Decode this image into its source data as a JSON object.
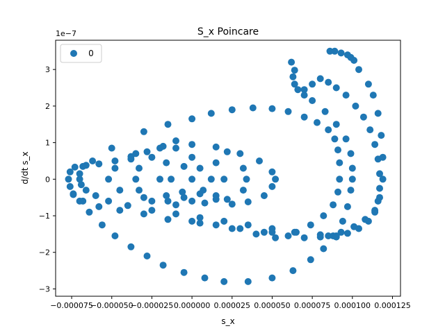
{
  "chart_data": {
    "type": "scatter",
    "title": "S_x Poincare",
    "xlabel": "s_x",
    "ylabel": "d/dt s_x",
    "y_offset_label": "1e−7",
    "xlim": [
      -8.5e-05,
      0.00013
    ],
    "ylim": [
      -3.2,
      3.8
    ],
    "y_scale_exponent": -7,
    "grid": false,
    "legend": {
      "placement": "top-left",
      "entries": [
        "0"
      ]
    },
    "x_ticks": [
      {
        "value": -7.5e-05,
        "label": "−0.000075"
      },
      {
        "value": -5e-05,
        "label": "−0.000050"
      },
      {
        "value": -2.5e-05,
        "label": "−0.000025"
      },
      {
        "value": 0.0,
        "label": "0.000000"
      },
      {
        "value": 2.5e-05,
        "label": "0.000025"
      },
      {
        "value": 5e-05,
        "label": "0.000050"
      },
      {
        "value": 7.5e-05,
        "label": "0.000075"
      },
      {
        "value": 0.0001,
        "label": "0.000100"
      },
      {
        "value": 0.000125,
        "label": "0.000125"
      }
    ],
    "y_ticks": [
      {
        "value": -3,
        "label": "−3"
      },
      {
        "value": -2,
        "label": "−2"
      },
      {
        "value": -1,
        "label": "−1"
      },
      {
        "value": 0,
        "label": "0"
      },
      {
        "value": 1,
        "label": "1"
      },
      {
        "value": 2,
        "label": "2"
      },
      {
        "value": 3,
        "label": "3"
      }
    ],
    "series": [
      {
        "name": "0",
        "color": "#1f77b4",
        "marker": "circle",
        "points": [
          [
            0.0,
            0.0
          ],
          [
            5e-06,
            0.3
          ],
          [
            7e-06,
            -0.3
          ],
          [
            -5e-06,
            0.35
          ],
          [
            -6e-06,
            -0.35
          ],
          [
            1.2e-05,
            0.0
          ],
          [
            -1.3e-05,
            0.0
          ],
          [
            0.0,
            0.6
          ],
          [
            1.5e-05,
            0.45
          ],
          [
            2e-05,
            0.0
          ],
          [
            1.5e-05,
            -0.45
          ],
          [
            0.0,
            -0.6
          ],
          [
            -1.6e-05,
            -0.45
          ],
          [
            -2e-05,
            0.0
          ],
          [
            -1.6e-05,
            0.45
          ],
          [
            0.0,
            0.95
          ],
          [
            2.2e-05,
            0.75
          ],
          [
            3.2e-05,
            0.3
          ],
          [
            3.4e-05,
            0.0
          ],
          [
            3.2e-05,
            -0.3
          ],
          [
            2.2e-05,
            -0.55
          ],
          [
            8e-06,
            -0.65
          ],
          [
            -1e-05,
            -0.7
          ],
          [
            -2.5e-05,
            -0.6
          ],
          [
            -3.3e-05,
            -0.3
          ],
          [
            -3.5e-05,
            0.0
          ],
          [
            -3.3e-05,
            0.3
          ],
          [
            -2.5e-05,
            0.6
          ],
          [
            -1e-05,
            0.85
          ],
          [
            1.5e-05,
            0.88
          ],
          [
            3e-05,
            0.7
          ],
          [
            4.2e-05,
            0.5
          ],
          [
            5e-05,
            0.2
          ],
          [
            5.2e-05,
            0.0
          ],
          [
            5e-05,
            -0.2
          ],
          [
            4.5e-05,
            -0.45
          ],
          [
            3.5e-05,
            -0.62
          ],
          [
            2.5e-05,
            -0.68
          ],
          [
            1.5e-05,
            -0.55
          ],
          [
            5e-06,
            -0.4
          ],
          [
            -5e-06,
            -0.5
          ],
          [
            -1.5e-05,
            -0.6
          ],
          [
            -3e-05,
            -0.5
          ],
          [
            -4.5e-05,
            -0.3
          ],
          [
            -5.2e-05,
            0.0
          ],
          [
            -4.8e-05,
            0.3
          ],
          [
            -3.8e-05,
            0.55
          ],
          [
            -2e-05,
            0.85
          ],
          [
            -3.5e-05,
            0.7
          ],
          [
            -5e-05,
            0.85
          ],
          [
            -6.2e-05,
            0.5
          ],
          [
            -6.8e-05,
            0.35
          ],
          [
            -7e-05,
            0.15
          ],
          [
            -7e-05,
            0.0
          ],
          [
            -6.9e-05,
            -0.15
          ],
          [
            -6.6e-05,
            -0.3
          ],
          [
            -6e-05,
            -0.45
          ],
          [
            -5.2e-05,
            -0.6
          ],
          [
            -4e-05,
            -0.72
          ],
          [
            -2.5e-05,
            -0.85
          ],
          [
            -1e-05,
            -0.95
          ],
          [
            5e-06,
            -1.05
          ],
          [
            2e-05,
            -1.15
          ],
          [
            3.5e-05,
            -1.25
          ],
          [
            5e-05,
            -1.35
          ],
          [
            6.5e-05,
            -1.45
          ],
          [
            8e-05,
            -1.52
          ],
          [
            9e-05,
            -1.58
          ],
          [
            -3e-05,
            1.3
          ],
          [
            -1.5e-05,
            1.5
          ],
          [
            0.0,
            1.65
          ],
          [
            1.2e-05,
            1.8
          ],
          [
            2.5e-05,
            1.9
          ],
          [
            3.8e-05,
            1.95
          ],
          [
            5e-05,
            1.93
          ],
          [
            6e-05,
            1.85
          ],
          [
            7e-05,
            1.7
          ],
          [
            7.8e-05,
            1.55
          ],
          [
            8.5e-05,
            1.35
          ],
          [
            8.9e-05,
            1.1
          ],
          [
            9.1e-05,
            0.8
          ],
          [
            9.2e-05,
            0.45
          ],
          [
            9.2e-05,
            0.0
          ],
          [
            9.1e-05,
            -0.35
          ],
          [
            8.8e-05,
            -0.7
          ],
          [
            8.2e-05,
            -1.0
          ],
          [
            7.4e-05,
            -1.25
          ],
          [
            6.4e-05,
            -1.45
          ],
          [
            5.2e-05,
            -1.6
          ],
          [
            5e-05,
            -1.45
          ],
          [
            4e-05,
            -1.5
          ],
          [
            2.5e-05,
            -1.35
          ],
          [
            5e-06,
            -1.2
          ],
          [
            -1.5e-05,
            -1.1
          ],
          [
            -3e-05,
            -0.95
          ],
          [
            -4.5e-05,
            -0.85
          ],
          [
            -5.8e-05,
            -0.75
          ],
          [
            -6.8e-05,
            -0.6
          ],
          [
            -7.4e-05,
            -0.42
          ],
          [
            -7.6e-05,
            -0.2
          ],
          [
            -7.7e-05,
            0.0
          ],
          [
            -7.6e-05,
            0.2
          ],
          [
            -7.3e-05,
            0.33
          ],
          [
            -6.6e-05,
            0.38
          ],
          [
            -5.8e-05,
            0.42
          ],
          [
            -4.8e-05,
            0.5
          ],
          [
            -3.8e-05,
            0.62
          ],
          [
            -2.8e-05,
            0.75
          ],
          [
            -1.8e-05,
            0.9
          ],
          [
            -1e-05,
            1.05
          ],
          [
            -7.4e-05,
            -0.4
          ],
          [
            -7e-05,
            -0.6
          ],
          [
            -6.4e-05,
            -0.9
          ],
          [
            -5.6e-05,
            -1.25
          ],
          [
            -4.8e-05,
            -1.55
          ],
          [
            -3.8e-05,
            -1.85
          ],
          [
            -2.8e-05,
            -2.1
          ],
          [
            -1.8e-05,
            -2.35
          ],
          [
            -5e-06,
            -2.55
          ],
          [
            8e-06,
            -2.7
          ],
          [
            2e-05,
            -2.8
          ],
          [
            3.5e-05,
            -2.8
          ],
          [
            5e-05,
            -2.7
          ],
          [
            6.3e-05,
            -2.5
          ],
          [
            7.4e-05,
            -2.2
          ],
          [
            8.2e-05,
            -1.9
          ],
          [
            8.8e-05,
            -1.55
          ],
          [
            9.4e-05,
            -1.15
          ],
          [
            9.7e-05,
            -0.75
          ],
          [
            9.9e-05,
            -0.3
          ],
          [
            0.0001,
            0.0
          ],
          [
            0.0001,
            0.3
          ],
          [
            9.9e-05,
            0.7
          ],
          [
            9.6e-05,
            1.1
          ],
          [
            9e-05,
            1.5
          ],
          [
            8.3e-05,
            1.85
          ],
          [
            7.5e-05,
            2.15
          ],
          [
            7e-05,
            2.3
          ],
          [
            6.6e-05,
            2.45
          ],
          [
            6.4e-05,
            2.6
          ],
          [
            6.3e-05,
            2.8
          ],
          [
            6.4e-05,
            2.98
          ],
          [
            6.2e-05,
            3.2
          ],
          [
            7e-05,
            2.45
          ],
          [
            7.5e-05,
            2.6
          ],
          [
            8e-05,
            2.75
          ],
          [
            8.5e-05,
            2.65
          ],
          [
            9e-05,
            2.5
          ],
          [
            9.6e-05,
            2.3
          ],
          [
            0.000102,
            2.0
          ],
          [
            0.000107,
            1.7
          ],
          [
            0.000111,
            1.35
          ],
          [
            0.000114,
            0.95
          ],
          [
            0.000116,
            0.55
          ],
          [
            0.000117,
            0.15
          ],
          [
            0.000117,
            -0.25
          ],
          [
            0.000116,
            -0.6
          ],
          [
            0.000114,
            -0.9
          ],
          [
            0.00011,
            -1.15
          ],
          [
            0.000104,
            -1.35
          ],
          [
            9.7e-05,
            -1.48
          ],
          [
            9e-05,
            -1.55
          ],
          [
            8e-05,
            -1.58
          ],
          [
            7e-05,
            -1.6
          ],
          [
            6e-05,
            -1.55
          ],
          [
            4.5e-05,
            -1.45
          ],
          [
            3e-05,
            -1.35
          ],
          [
            1.5e-05,
            -1.25
          ],
          [
            0.0,
            -1.15
          ],
          [
            8.6e-05,
            3.5
          ],
          [
            8.9e-05,
            3.5
          ],
          [
            9.3e-05,
            3.45
          ],
          [
            9.7e-05,
            3.4
          ],
          [
            9.9e-05,
            3.33
          ],
          [
            0.000101,
            3.25
          ],
          [
            0.000104,
            3.0
          ],
          [
            0.00011,
            2.6
          ],
          [
            0.000113,
            2.3
          ],
          [
            0.000116,
            1.8
          ],
          [
            0.000118,
            1.2
          ],
          [
            0.000119,
            0.6
          ],
          [
            0.000119,
            0.0
          ],
          [
            0.000117,
            -0.5
          ],
          [
            0.000114,
            -0.85
          ],
          [
            0.000108,
            -1.1
          ],
          [
            0.000101,
            -1.3
          ],
          [
            9.3e-05,
            -1.45
          ],
          [
            8.5e-05,
            -1.55
          ]
        ]
      }
    ]
  }
}
